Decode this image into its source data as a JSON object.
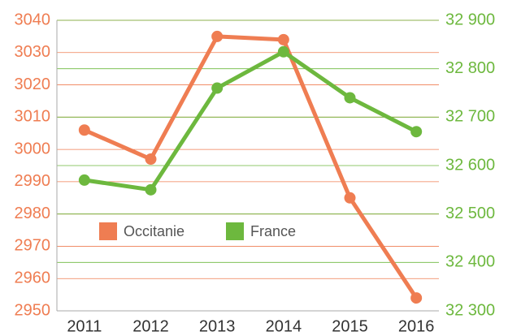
{
  "chart_data": {
    "type": "line",
    "categories": [
      "2011",
      "2012",
      "2013",
      "2014",
      "2015",
      "2016"
    ],
    "series": [
      {
        "name": "Occitanie",
        "color": "#ef7d52",
        "values": [
          3006,
          2997,
          3035,
          3034,
          2985,
          2954
        ]
      },
      {
        "name": "France",
        "color": "#6db83e",
        "axis": "y2",
        "values": [
          32570,
          32550,
          32760,
          32835,
          32740,
          32670
        ]
      }
    ],
    "ylim": [
      2950,
      3040
    ],
    "yticks": [
      2950,
      2960,
      2970,
      2980,
      2990,
      3000,
      3010,
      3020,
      3030,
      3040
    ],
    "y2lim": [
      32300,
      32900
    ],
    "y2ticks": [
      {
        "value": 32300,
        "label": "32 300"
      },
      {
        "value": 32400,
        "label": "32 400"
      },
      {
        "value": 32500,
        "label": "32 500"
      },
      {
        "value": 32600,
        "label": "32 600"
      },
      {
        "value": 32700,
        "label": "32 700"
      },
      {
        "value": 32800,
        "label": "32 800"
      },
      {
        "value": 32900,
        "label": "32 900"
      }
    ],
    "grid": true
  }
}
